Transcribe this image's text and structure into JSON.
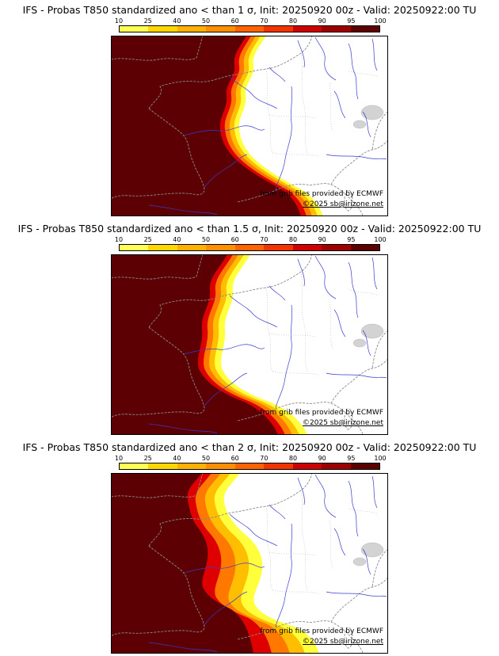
{
  "page": {
    "background": "#ffffff"
  },
  "colorbar": {
    "ticks": [
      "10",
      "25",
      "40",
      "50",
      "60",
      "70",
      "80",
      "90",
      "95",
      "100"
    ],
    "colors": [
      "#FFFF55",
      "#FFD700",
      "#FFB000",
      "#FF8E00",
      "#FF6400",
      "#F23500",
      "#D00000",
      "#9E0000",
      "#5C0000"
    ]
  },
  "panels": [
    {
      "title": "IFS - Probas T850  standardized ano < than 1 σ, Init: 20250920 00z - Valid: 20250922:00 TU"
    },
    {
      "title": "IFS - Probas T850  standardized ano < than 1.5 σ, Init: 20250920 00z - Valid: 20250922:00 TU"
    },
    {
      "title": "IFS - Probas T850  standardized ano < than 2 σ, Init: 20250920 00z - Valid: 20250922:00 TU"
    }
  ],
  "map": {
    "credit_line1": "from grib files provided by ECMWF",
    "credit_line2": "©2025 sb@irizone.net",
    "river_color": "#3a3ad0",
    "coast_color": "#8a8a8a",
    "field_colors": [
      "#FFFF3C",
      "#FFBE00",
      "#FF7800",
      "#DE0000",
      "#5C0003"
    ]
  }
}
